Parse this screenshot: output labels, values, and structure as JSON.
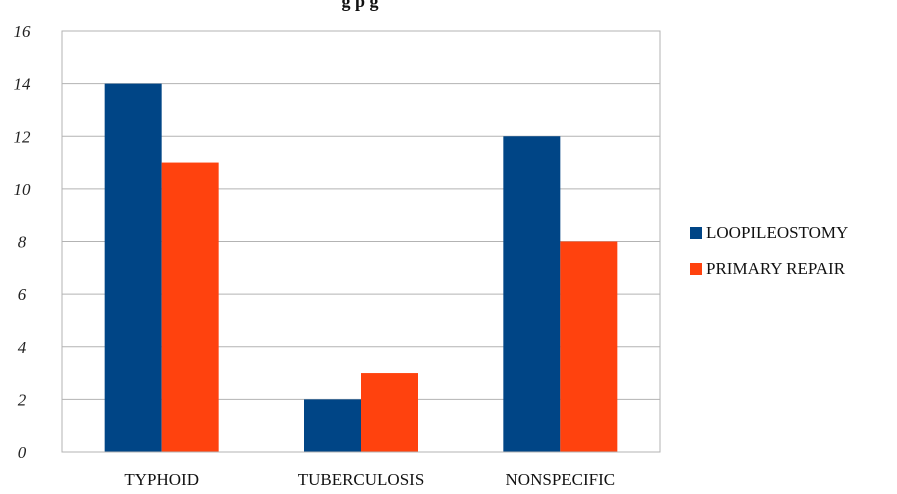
{
  "chart_data": {
    "type": "bar",
    "title": "g            p   g",
    "categories": [
      "TYPHOID",
      "TUBERCULOSIS",
      "NONSPECIFIC"
    ],
    "series": [
      {
        "name": "LOOPILEOSTOMY",
        "values": [
          14,
          2,
          12
        ],
        "color": "#004586"
      },
      {
        "name": "PRIMARY REPAIR",
        "values": [
          11,
          3,
          8
        ],
        "color": "#ff420e"
      }
    ],
    "ylim": [
      0,
      16
    ],
    "yticks": [
      "0",
      "2",
      "4",
      "6",
      "8",
      "10",
      "12",
      "14",
      "16"
    ],
    "grid": true,
    "legend_position": "right"
  }
}
